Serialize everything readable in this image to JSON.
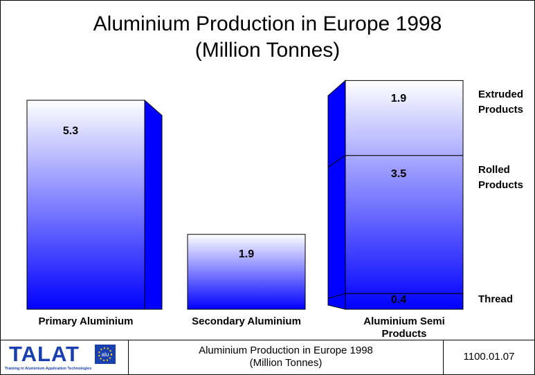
{
  "chart_data": {
    "type": "bar",
    "title": "Aluminium Production in Europe 1998",
    "subtitle": "(Million Tonnes)",
    "categories": [
      "Primary Aluminium",
      "Secondary Aluminium",
      "Aluminium Semi Products"
    ],
    "values": [
      5.3,
      1.9,
      null
    ],
    "segments": [
      {
        "name": "Thread",
        "value": 0.4
      },
      {
        "name": "Rolled Products",
        "value": 3.5
      },
      {
        "name": "Extruded Products",
        "value": 1.9
      }
    ],
    "color": "#0000ff"
  },
  "footer": {
    "logo": "TALAT",
    "logo_subtitle": "Training in Aluminium Application Technologies",
    "title": "Aluminium Production in Europe 1998",
    "subtitle": "(Million Tonnes)",
    "code": "1100.01.07"
  }
}
